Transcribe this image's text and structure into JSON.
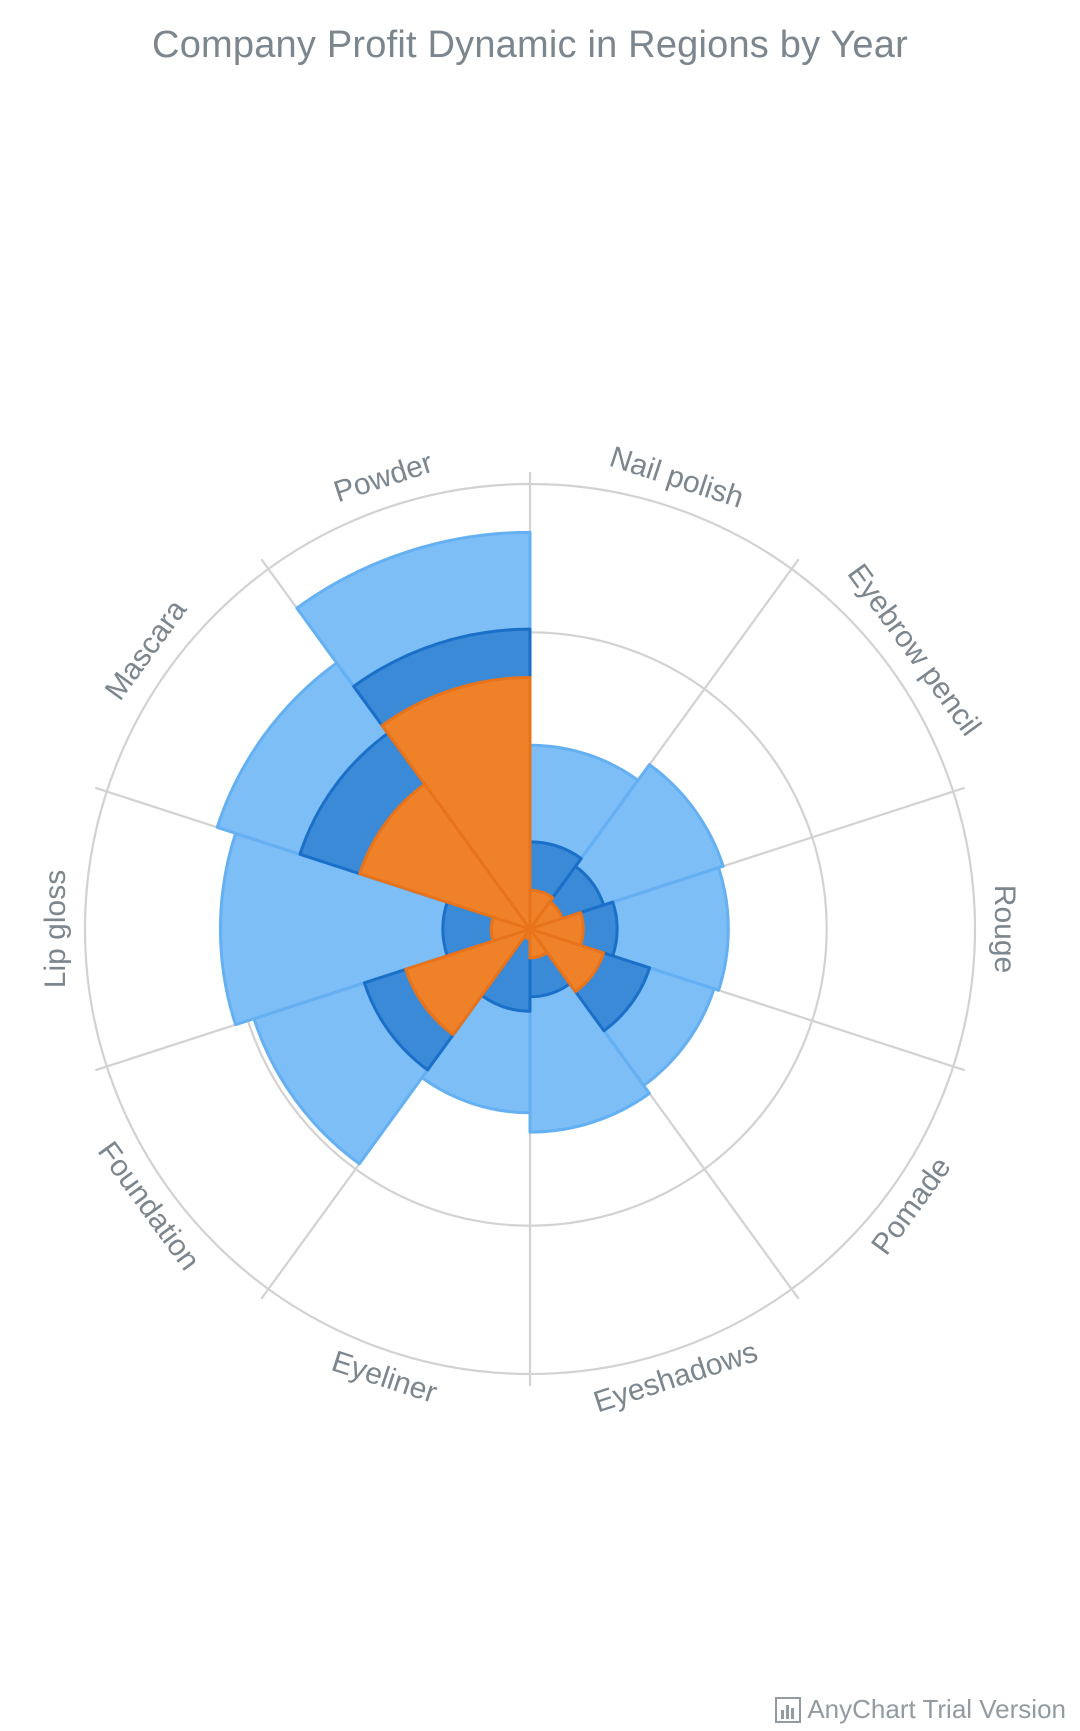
{
  "title": "Company Profit Dynamic in Regions by Year",
  "credits": {
    "text": "AnyChart Trial Version",
    "icon": "chart-bar-icon"
  },
  "colors": {
    "series_light": "#7cbef5",
    "series_light_stroke": "#64b0f2",
    "series_mid": "#3a8ad8",
    "series_mid_stroke": "#1a6fc9",
    "series_orange": "#ef8228",
    "series_orange_stroke": "#e8731a",
    "grid": "#d2d2d2"
  },
  "chart_data": {
    "type": "polar-column (stacked rose)",
    "categories": [
      "Nail polish",
      "Eyebrow pencil",
      "Rouge",
      "Pomade",
      "Eyeshadows",
      "Eyeliner",
      "Foundation",
      "Lip gloss",
      "Mascara",
      "Powder"
    ],
    "series": [
      {
        "values": [
          19000,
          21000,
          20500,
          20000,
          21000,
          19000,
          30000,
          32000,
          34000,
          41000
        ],
        "color": "#7cbef5"
      },
      {
        "values": [
          9000,
          8000,
          9000,
          13000,
          7000,
          8500,
          18000,
          9000,
          25000,
          31000
        ],
        "color": "#3a8ad8"
      },
      {
        "values": [
          4000,
          3500,
          5500,
          8000,
          3000,
          1000,
          13500,
          4000,
          18500,
          26000
        ],
        "color": "#ef8228"
      }
    ],
    "ylim": [
      0,
      46000
    ],
    "grid_rings": 3,
    "grid_spokes": 10
  }
}
